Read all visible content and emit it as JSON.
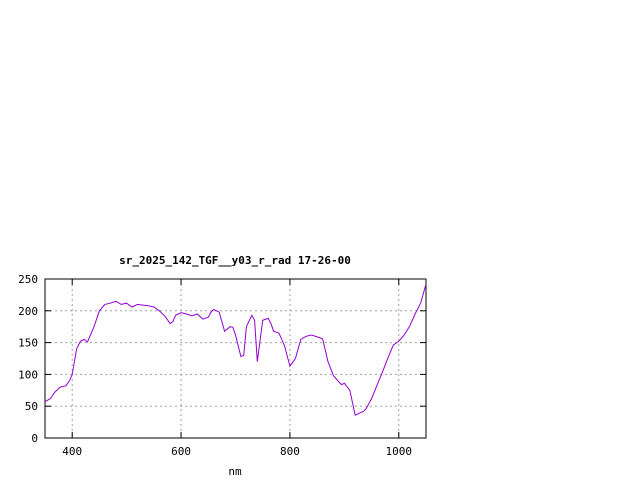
{
  "chart_data": {
    "type": "line",
    "title": "sr_2025_142_TGF__y03_r_rad 17-26-00",
    "xlabel": "nm",
    "ylabel": "",
    "xlim": [
      350,
      1050
    ],
    "ylim": [
      0,
      250
    ],
    "xticks": [
      400,
      600,
      800,
      1000
    ],
    "yticks": [
      0,
      50,
      100,
      150,
      200,
      250
    ],
    "grid": true,
    "legend": "none",
    "series": [
      {
        "color": "#9400d3",
        "x": [
          350,
          360,
          368,
          378,
          388,
          395,
          400,
          408,
          415,
          422,
          428,
          440,
          450,
          460,
          470,
          480,
          490,
          500,
          510,
          520,
          530,
          540,
          550,
          560,
          570,
          580,
          585,
          590,
          600,
          610,
          620,
          630,
          640,
          650,
          655,
          660,
          670,
          680,
          690,
          695,
          700,
          710,
          715,
          720,
          730,
          735,
          740,
          750,
          760,
          765,
          770,
          780,
          790,
          800,
          810,
          815,
          820,
          830,
          840,
          850,
          860,
          870,
          880,
          890,
          895,
          900,
          910,
          920,
          925,
          930,
          935,
          940,
          950,
          960,
          970,
          980,
          990,
          1000,
          1010,
          1020,
          1030,
          1040,
          1050
        ],
        "y": [
          57,
          62,
          72,
          80,
          82,
          90,
          100,
          140,
          152,
          155,
          151,
          175,
          200,
          210,
          212,
          215,
          210,
          212,
          206,
          210,
          209,
          208,
          206,
          200,
          192,
          180,
          183,
          193,
          197,
          195,
          192,
          195,
          187,
          190,
          198,
          202,
          198,
          168,
          175,
          174,
          162,
          128,
          130,
          175,
          193,
          185,
          120,
          185,
          188,
          180,
          168,
          165,
          145,
          113,
          125,
          140,
          155,
          160,
          162,
          159,
          156,
          120,
          98,
          88,
          84,
          86,
          75,
          36,
          38,
          40,
          42,
          46,
          62,
          83,
          104,
          126,
          146,
          152,
          162,
          176,
          195,
          212,
          242
        ]
      }
    ]
  }
}
